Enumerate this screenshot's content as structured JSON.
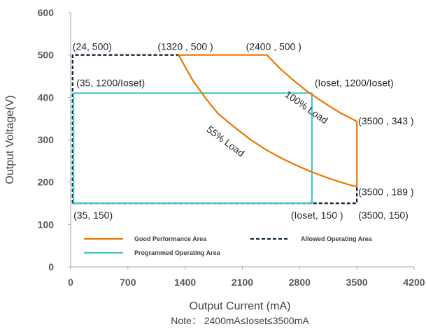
{
  "chart_data": {
    "type": "line",
    "xlabel": "Output Current (mA)",
    "ylabel": "Output Voltage(V)",
    "note": "Note： 2400mA≤Ioset≤3500mA",
    "xlim": [
      0,
      4200
    ],
    "ylim": [
      0,
      600
    ],
    "x_ticks": [
      0,
      700,
      1400,
      2100,
      2800,
      3500,
      4200
    ],
    "y_ticks": [
      0,
      100,
      200,
      300,
      400,
      500,
      600
    ],
    "gridlines": false,
    "legend_placement": "bottom-inside",
    "series": [
      {
        "name": "Good Performance Area",
        "style": "solid",
        "color": "#F07400",
        "points": [
          [
            1320,
            500
          ],
          [
            1490,
            441
          ],
          [
            1650,
            398
          ],
          [
            1800,
            362
          ],
          [
            2000,
            330
          ],
          [
            2200,
            300
          ],
          [
            2400,
            275
          ],
          [
            2600,
            254
          ],
          [
            2800,
            236
          ],
          [
            3000,
            220
          ],
          [
            3200,
            206
          ],
          [
            3400,
            194
          ],
          [
            3500,
            189
          ],
          [
            3500,
            343
          ],
          [
            3300,
            363
          ],
          [
            3100,
            387
          ],
          [
            2900,
            413
          ],
          [
            2700,
            444
          ],
          [
            2550,
            470
          ],
          [
            2400,
            500
          ],
          [
            1320,
            500
          ]
        ]
      },
      {
        "name": "Allowed Operating Area",
        "style": "dashed",
        "color": "#0E2841",
        "points": [
          [
            24,
            150
          ],
          [
            24,
            500
          ],
          [
            1320,
            500
          ]
        ]
      },
      {
        "name": "Allowed Operating Area (lower)",
        "style": "dashed",
        "color": "#0E2841",
        "points": [
          [
            24,
            150
          ],
          [
            3500,
            150
          ],
          [
            3500,
            189
          ]
        ]
      },
      {
        "name": "Programmed Operating Area",
        "style": "solid",
        "color": "#41C5CC",
        "points": [
          [
            35,
            150
          ],
          [
            35,
            410
          ],
          [
            2950,
            410
          ],
          [
            2950,
            150
          ],
          [
            35,
            150
          ]
        ]
      }
    ],
    "point_labels": [
      {
        "text": "(24, 500)",
        "x": 24,
        "y": 500
      },
      {
        "text": "(1320 , 500 )",
        "x": 1320,
        "y": 500
      },
      {
        "text": "(2400 , 500 )",
        "x": 2400,
        "y": 500
      },
      {
        "text": "(35, 1200/Ioset)",
        "x": 35,
        "y": 410
      },
      {
        "text": "(Ioset, 1200/Ioset)",
        "x": 2950,
        "y": 410
      },
      {
        "text": "(3500 , 343 )",
        "x": 3500,
        "y": 343
      },
      {
        "text": "(3500 , 189 )",
        "x": 3500,
        "y": 189
      },
      {
        "text": "(3500, 150)",
        "x": 3500,
        "y": 150
      },
      {
        "text": "(35, 150)",
        "x": 35,
        "y": 150
      },
      {
        "text": "(Ioset, 150 )",
        "x": 2950,
        "y": 150
      }
    ],
    "curve_labels": [
      {
        "text": "100% Load",
        "x": 2860,
        "y": 370,
        "angle": 35
      },
      {
        "text": "55% Load",
        "x": 1870,
        "y": 290,
        "angle": 37
      }
    ],
    "legend": [
      {
        "label": "Good Performance Area",
        "style": "solid",
        "color": "#F07400"
      },
      {
        "label": "Allowed Operating Area",
        "style": "dashed",
        "color": "#0E2841"
      },
      {
        "label": "Programmed Operating Area",
        "style": "solid",
        "color": "#41C5CC"
      }
    ]
  }
}
